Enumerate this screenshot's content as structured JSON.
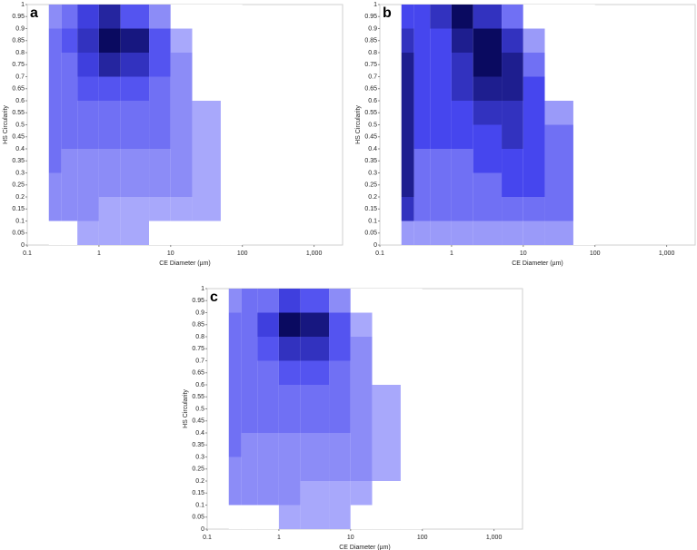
{
  "chart_data": [
    {
      "type": "heatmap",
      "panel_label": "a",
      "x_label": "CE Diameter (µm)",
      "y_label": "HS Circularity",
      "xscale": "log",
      "xlim": [
        0.1,
        2500
      ],
      "ylim": [
        0,
        1
      ],
      "xticks": [
        0.1,
        1,
        10,
        100,
        {
          "value": 1000,
          "label": "1,000"
        }
      ],
      "yticks": [
        0,
        0.05,
        0.1,
        0.15,
        0.2,
        0.25,
        0.3,
        0.35,
        0.4,
        0.45,
        0.5,
        0.55,
        0.6,
        0.65,
        0.7,
        0.75,
        0.8,
        0.85,
        0.9,
        0.95,
        1
      ],
      "x_bins": [
        0.2,
        0.3,
        0.5,
        1,
        2,
        5,
        10,
        20,
        50,
        100
      ],
      "y_bins": [
        0,
        0.1,
        0.2,
        0.3,
        0.4,
        0.5,
        0.6,
        0.7,
        0.8,
        0.9,
        1
      ],
      "colors": [
        "#ffffff",
        "#c4c4ff",
        "#4646ee",
        "#0a0a60"
      ],
      "z": [
        [
          0,
          0,
          1,
          1,
          1,
          0,
          0,
          0,
          0
        ],
        [
          2,
          2,
          2,
          1,
          1,
          1,
          1,
          1,
          0
        ],
        [
          2,
          2,
          2,
          2,
          2,
          2,
          2,
          1,
          0
        ],
        [
          3,
          2,
          2,
          2,
          2,
          2,
          2,
          1,
          0
        ],
        [
          3,
          3,
          3,
          3,
          3,
          3,
          2,
          1,
          0
        ],
        [
          3,
          3,
          3,
          3,
          3,
          3,
          2,
          1,
          0
        ],
        [
          3,
          3,
          4,
          4,
          4,
          3,
          2,
          0,
          0
        ],
        [
          3,
          3,
          5,
          7,
          6,
          4,
          2,
          0,
          0
        ],
        [
          3,
          4,
          6,
          9,
          8,
          4,
          1,
          0,
          0
        ],
        [
          2,
          3,
          5,
          7,
          4,
          2,
          0,
          0,
          0
        ]
      ]
    },
    {
      "type": "heatmap",
      "panel_label": "b",
      "x_label": "CE Diameter (µm)",
      "y_label": "HS Circularity",
      "xscale": "log",
      "xlim": [
        0.1,
        2500
      ],
      "ylim": [
        0,
        1
      ],
      "xticks": [
        0.1,
        1,
        10,
        100,
        {
          "value": 1000,
          "label": "1,000"
        }
      ],
      "yticks": [
        0,
        0.05,
        0.1,
        0.15,
        0.2,
        0.25,
        0.3,
        0.35,
        0.4,
        0.45,
        0.5,
        0.55,
        0.6,
        0.65,
        0.7,
        0.75,
        0.8,
        0.85,
        0.9,
        0.95,
        1
      ],
      "x_bins": [
        0.2,
        0.3,
        0.5,
        1,
        2,
        5,
        10,
        20,
        50,
        100
      ],
      "y_bins": [
        0,
        0.1,
        0.2,
        0.3,
        0.4,
        0.5,
        0.6,
        0.7,
        0.8,
        0.9,
        1
      ],
      "colors": [
        "#ffffff",
        "#c4c4ff",
        "#4646ee",
        "#0a0a60"
      ],
      "z": [
        [
          1,
          1,
          1,
          1,
          1,
          1,
          1,
          1,
          0
        ],
        [
          4,
          2,
          2,
          2,
          2,
          2,
          2,
          2,
          0
        ],
        [
          5,
          2,
          2,
          2,
          2,
          3,
          3,
          2,
          0
        ],
        [
          5,
          2,
          2,
          2,
          3,
          3,
          3,
          2,
          0
        ],
        [
          5,
          3,
          3,
          3,
          3,
          4,
          3,
          2,
          0
        ],
        [
          5,
          3,
          3,
          3,
          4,
          4,
          3,
          1,
          0
        ],
        [
          5,
          3,
          3,
          4,
          5,
          5,
          3,
          0,
          0
        ],
        [
          5,
          3,
          3,
          4,
          6,
          5,
          2,
          0,
          0
        ],
        [
          4,
          3,
          3,
          5,
          6,
          4,
          1,
          0,
          0
        ],
        [
          3,
          3,
          4,
          6,
          4,
          2,
          0,
          0,
          0
        ]
      ]
    },
    {
      "type": "heatmap",
      "panel_label": "c",
      "x_label": "CE Diameter (µm)",
      "y_label": "HS Circularity",
      "xscale": "log",
      "xlim": [
        0.1,
        2500
      ],
      "ylim": [
        0,
        1
      ],
      "xticks": [
        0.1,
        1,
        10,
        100,
        {
          "value": 1000,
          "label": "1,000"
        }
      ],
      "yticks": [
        0,
        0.05,
        0.1,
        0.15,
        0.2,
        0.25,
        0.3,
        0.35,
        0.4,
        0.45,
        0.5,
        0.55,
        0.6,
        0.65,
        0.7,
        0.75,
        0.8,
        0.85,
        0.9,
        0.95,
        1
      ],
      "x_bins": [
        0.2,
        0.3,
        0.5,
        1,
        2,
        5,
        10,
        20,
        50,
        100
      ],
      "y_bins": [
        0,
        0.1,
        0.2,
        0.3,
        0.4,
        0.5,
        0.6,
        0.7,
        0.8,
        0.9,
        1
      ],
      "colors": [
        "#ffffff",
        "#c4c4ff",
        "#4646ee",
        "#0a0a60"
      ],
      "z": [
        [
          0,
          0,
          0,
          1,
          1,
          1,
          0,
          0,
          0
        ],
        [
          2,
          2,
          2,
          2,
          1,
          1,
          1,
          0,
          0
        ],
        [
          2,
          2,
          2,
          2,
          2,
          2,
          2,
          1,
          0
        ],
        [
          3,
          2,
          2,
          2,
          2,
          2,
          2,
          1,
          0
        ],
        [
          3,
          3,
          3,
          3,
          3,
          3,
          2,
          1,
          0
        ],
        [
          3,
          3,
          3,
          3,
          3,
          3,
          2,
          1,
          0
        ],
        [
          3,
          3,
          3,
          4,
          4,
          3,
          2,
          0,
          0
        ],
        [
          3,
          3,
          4,
          6,
          6,
          4,
          2,
          0,
          0
        ],
        [
          3,
          3,
          5,
          9,
          8,
          4,
          1,
          0,
          0
        ],
        [
          2,
          3,
          3,
          5,
          4,
          2,
          0,
          0,
          0
        ]
      ]
    }
  ]
}
